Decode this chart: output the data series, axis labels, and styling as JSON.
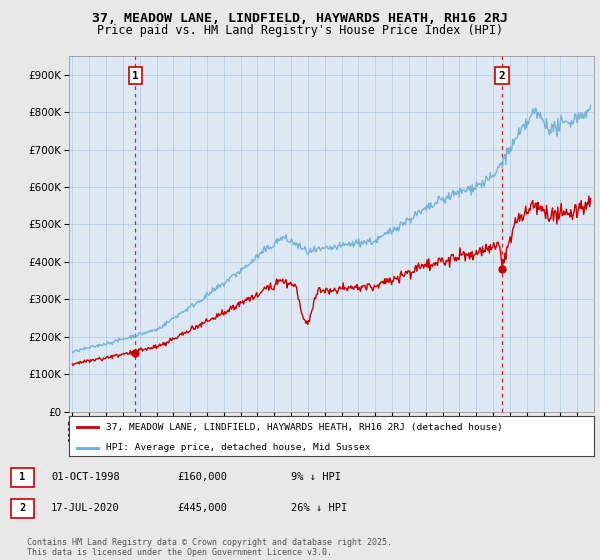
{
  "title_line1": "37, MEADOW LANE, LINDFIELD, HAYWARDS HEATH, RH16 2RJ",
  "title_line2": "Price paid vs. HM Land Registry's House Price Index (HPI)",
  "background_color": "#e8e8e8",
  "plot_background": "#dce9f5",
  "purchase1_date_num": 1998.75,
  "purchase1_price": 160000,
  "purchase2_date_num": 2020.54,
  "purchase2_price": 445000,
  "ylim_max": 950000,
  "ylim_min": 0,
  "xlim_min": 1994.8,
  "xlim_max": 2026.0,
  "legend_label1": "37, MEADOW LANE, LINDFIELD, HAYWARDS HEATH, RH16 2RJ (detached house)",
  "legend_label2": "HPI: Average price, detached house, Mid Sussex",
  "table_row1": [
    "1",
    "01-OCT-1998",
    "£160,000",
    "9% ↓ HPI"
  ],
  "table_row2": [
    "2",
    "17-JUL-2020",
    "£445,000",
    "26% ↓ HPI"
  ],
  "footer": "Contains HM Land Registry data © Crown copyright and database right 2025.\nThis data is licensed under the Open Government Licence v3.0.",
  "hpi_color": "#6baed6",
  "price_color": "#cc0000",
  "vline_color": "#cc0000",
  "grid_color": "#b0c8e0",
  "marker_dot_color": "#cc0000"
}
